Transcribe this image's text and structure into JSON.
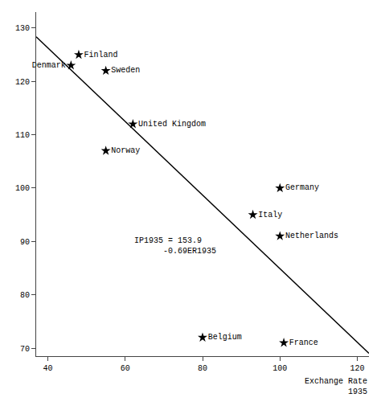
{
  "chart_data": {
    "type": "scatter",
    "series": [
      {
        "type": "scatter",
        "marker": "star",
        "color": "#000000",
        "labels": [
          "Finland",
          "Denmark",
          "Sweden",
          "United Kingdom",
          "Norway",
          "Germany",
          "Italy",
          "Netherlands",
          "Belgium",
          "France"
        ],
        "x": [
          48,
          46,
          55,
          62,
          55,
          100,
          93,
          100,
          80,
          101
        ],
        "values": [
          125,
          123,
          122,
          112,
          107,
          100,
          95,
          91,
          72,
          71
        ]
      },
      {
        "type": "line",
        "color": "#000000",
        "x": [
          37,
          123
        ],
        "values": [
          128.37,
          69.03
        ]
      }
    ],
    "annotations": [
      "IP1935 = 153.9",
      "      -0.69ER1935"
    ],
    "xlabel": "Exchange Rate\n1935",
    "xlim": [
      37,
      123
    ],
    "ylim": [
      68.5,
      133
    ],
    "xticks": [
      40,
      60,
      80,
      100,
      120
    ],
    "yticks": [
      70,
      80,
      90,
      100,
      110,
      120,
      130
    ],
    "grid": false
  }
}
